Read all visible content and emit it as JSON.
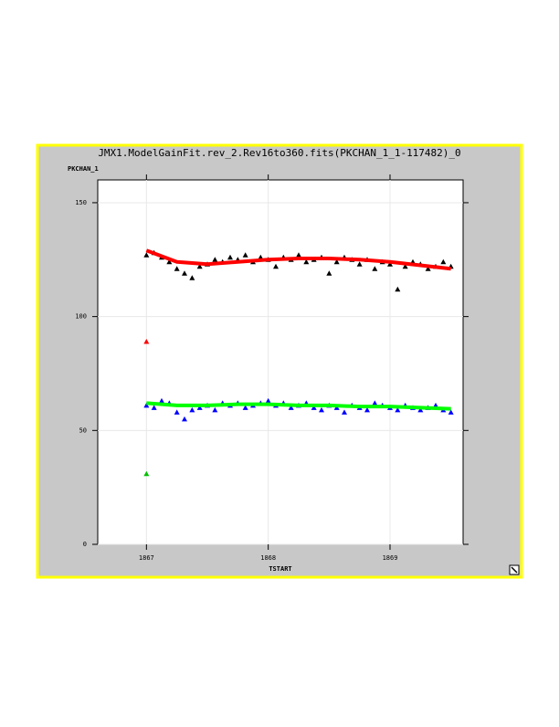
{
  "chart_data": {
    "type": "scatter",
    "title": "JMX1.ModelGainFit.rev_2.Rev16to360.fits(PKCHAN_1_1-117482)_0",
    "y_label": "PKCHAN_1",
    "x_label": "TSTART",
    "xlim": [
      1866.6,
      1869.6
    ],
    "ylim": [
      0,
      160
    ],
    "xticks": [
      1867,
      1868,
      1869
    ],
    "yticks": [
      0,
      50,
      100,
      150
    ],
    "grid": true,
    "series": [
      {
        "type": "scatter",
        "color": "#000000",
        "x": [
          1867,
          1867.0625,
          1867.125,
          1867.1875,
          1867.25,
          1867.3125,
          1867.375,
          1867.4375,
          1867.5,
          1867.5625,
          1867.625,
          1867.6875,
          1867.75,
          1867.8125,
          1867.875,
          1867.9375,
          1868,
          1868.0625,
          1868.125,
          1868.1875,
          1868.25,
          1868.3125,
          1868.375,
          1868.4375,
          1868.5,
          1868.5625,
          1868.625,
          1868.6875,
          1868.75,
          1868.8125,
          1868.875,
          1868.9375,
          1869,
          1869.0625,
          1869.125,
          1869.1875,
          1869.25,
          1869.3125,
          1869.375,
          1869.4375,
          1869.5
        ],
        "values": [
          127,
          128,
          126,
          124,
          121,
          119,
          117,
          122,
          123,
          125,
          124,
          126,
          125,
          127,
          124,
          126,
          125,
          122,
          126,
          125,
          127,
          124,
          125,
          126,
          119,
          124,
          126,
          125,
          123,
          125,
          121,
          124,
          123,
          112,
          122,
          124,
          123,
          121,
          122,
          124,
          122
        ]
      },
      {
        "type": "scatter",
        "color": "#0000ff",
        "x": [
          1867,
          1867.0625,
          1867.125,
          1867.1875,
          1867.25,
          1867.3125,
          1867.375,
          1867.4375,
          1867.5,
          1867.5625,
          1867.625,
          1867.6875,
          1867.75,
          1867.8125,
          1867.875,
          1867.9375,
          1868,
          1868.0625,
          1868.125,
          1868.1875,
          1868.25,
          1868.3125,
          1868.375,
          1868.4375,
          1868.5,
          1868.5625,
          1868.625,
          1868.6875,
          1868.75,
          1868.8125,
          1868.875,
          1868.9375,
          1869,
          1869.0625,
          1869.125,
          1869.1875,
          1869.25,
          1869.3125,
          1869.375,
          1869.4375,
          1869.5
        ],
        "values": [
          61,
          60,
          63,
          62,
          58,
          55,
          59,
          60,
          61,
          59,
          62,
          61,
          62,
          60,
          61,
          62,
          63,
          61,
          62,
          60,
          61,
          62,
          60,
          59,
          61,
          60,
          58,
          61,
          60,
          59,
          62,
          61,
          60,
          59,
          61,
          60,
          59,
          60,
          61,
          59,
          58
        ]
      },
      {
        "type": "line",
        "color": "#ff0000",
        "x": [
          1867,
          1867.25,
          1867.5,
          1867.75,
          1868,
          1868.25,
          1868.5,
          1868.75,
          1869,
          1869.25,
          1869.5
        ],
        "values": [
          129,
          124,
          123,
          124,
          125,
          125.5,
          125.5,
          125,
          124,
          122.5,
          121
        ]
      },
      {
        "type": "line",
        "color": "#00ff00",
        "x": [
          1867,
          1867.25,
          1867.5,
          1867.75,
          1868,
          1868.25,
          1868.5,
          1868.75,
          1869,
          1869.25,
          1869.5
        ],
        "values": [
          62,
          61,
          61,
          61.5,
          61.5,
          61,
          61,
          60.5,
          60.5,
          60,
          59.5
        ]
      },
      {
        "type": "scatter",
        "color": "#ff0000",
        "x": [
          1867
        ],
        "values": [
          89
        ]
      },
      {
        "type": "scatter",
        "color": "#00c000",
        "x": [
          1867
        ],
        "values": [
          31
        ]
      }
    ]
  }
}
